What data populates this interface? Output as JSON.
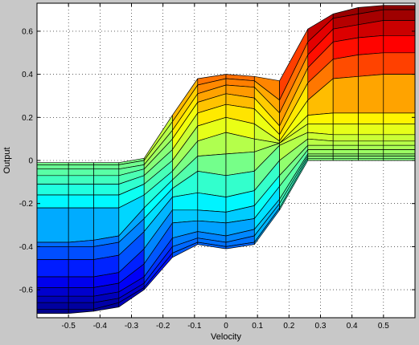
{
  "chart_data": {
    "type": "surface",
    "title": "",
    "xlabel": "Velocity",
    "ylabel": "Output",
    "xlim": [
      -0.6,
      0.6
    ],
    "ylim": [
      -0.73,
      0.73
    ],
    "x_ticks": [
      -0.5,
      -0.4,
      -0.3,
      -0.2,
      -0.1,
      0,
      0.1,
      0.2,
      0.3,
      0.4,
      0.5
    ],
    "x_tick_labels": [
      "-0.5",
      "-0.4",
      "-0.3",
      "-0.2",
      "-0.1",
      "0",
      "0.1",
      "0.2",
      "0.3",
      "0.4",
      "0.5"
    ],
    "y_ticks": [
      -0.6,
      -0.4,
      -0.2,
      0,
      0.2,
      0.4,
      0.6
    ],
    "y_tick_labels": [
      "-0.6",
      "-0.4",
      "-0.2",
      "0",
      "0.2",
      "0.4",
      "0.6"
    ],
    "grid": true,
    "colormap": "jet",
    "color_range": [
      -0.72,
      0.72
    ],
    "columns_x": [
      -0.6,
      -0.5,
      -0.42,
      -0.34,
      -0.26,
      -0.17,
      -0.09,
      0,
      0.09,
      0.17,
      0.26,
      0.34,
      0.42,
      0.5,
      0.6
    ],
    "mesh_rows": [
      {
        "level": 0,
        "y": [
          -0.01,
          -0.01,
          -0.01,
          -0.01,
          0.01,
          0.21,
          0.38,
          0.4,
          0.39,
          0.37,
          0.61,
          0.68,
          0.71,
          0.72,
          0.72
        ]
      },
      {
        "level": 1,
        "y": [
          -0.02,
          -0.02,
          -0.02,
          -0.02,
          0.0,
          0.18,
          0.35,
          0.38,
          0.37,
          0.28,
          0.55,
          0.66,
          0.68,
          0.7,
          0.7
        ]
      },
      {
        "level": 2,
        "y": [
          -0.04,
          -0.04,
          -0.04,
          -0.04,
          -0.02,
          0.14,
          0.31,
          0.35,
          0.34,
          0.22,
          0.49,
          0.61,
          0.63,
          0.65,
          0.65
        ]
      },
      {
        "level": 3,
        "y": [
          -0.07,
          -0.07,
          -0.07,
          -0.07,
          -0.04,
          0.1,
          0.27,
          0.31,
          0.29,
          0.16,
          0.43,
          0.55,
          0.57,
          0.58,
          0.58
        ]
      },
      {
        "level": 4,
        "y": [
          -0.11,
          -0.11,
          -0.11,
          -0.11,
          -0.07,
          0.05,
          0.22,
          0.26,
          0.24,
          0.12,
          0.36,
          0.47,
          0.49,
          0.5,
          0.5
        ]
      },
      {
        "level": 5,
        "y": [
          -0.16,
          -0.16,
          -0.16,
          -0.16,
          -0.11,
          0.0,
          0.16,
          0.2,
          0.17,
          0.09,
          0.28,
          0.38,
          0.39,
          0.4,
          0.4
        ]
      },
      {
        "level": 6,
        "y": [
          -0.22,
          -0.22,
          -0.22,
          -0.22,
          -0.16,
          -0.05,
          0.09,
          0.13,
          0.1,
          0.08,
          0.21,
          0.22,
          0.22,
          0.22,
          0.22
        ]
      },
      {
        "level": 7,
        "y": [
          -0.38,
          -0.38,
          -0.37,
          -0.35,
          -0.22,
          -0.09,
          0.02,
          0.03,
          0.04,
          0.08,
          0.17,
          0.17,
          0.17,
          0.17,
          0.17
        ]
      },
      {
        "level": 8,
        "y": [
          -0.4,
          -0.4,
          -0.4,
          -0.38,
          -0.27,
          -0.13,
          -0.05,
          -0.07,
          -0.05,
          0.07,
          0.13,
          0.12,
          0.12,
          0.12,
          0.12
        ]
      },
      {
        "level": 9,
        "y": [
          -0.46,
          -0.46,
          -0.46,
          -0.44,
          -0.33,
          -0.17,
          -0.15,
          -0.17,
          -0.14,
          0.0,
          0.1,
          0.09,
          0.09,
          0.09,
          0.09
        ]
      },
      {
        "level": 10,
        "y": [
          -0.54,
          -0.54,
          -0.54,
          -0.52,
          -0.41,
          -0.23,
          -0.23,
          -0.24,
          -0.21,
          -0.07,
          0.07,
          0.07,
          0.07,
          0.07,
          0.07
        ]
      },
      {
        "level": 11,
        "y": [
          -0.59,
          -0.59,
          -0.59,
          -0.57,
          -0.48,
          -0.29,
          -0.28,
          -0.29,
          -0.27,
          -0.12,
          0.05,
          0.05,
          0.05,
          0.05,
          0.05
        ]
      },
      {
        "level": 12,
        "y": [
          -0.63,
          -0.63,
          -0.63,
          -0.61,
          -0.54,
          -0.36,
          -0.33,
          -0.35,
          -0.32,
          -0.18,
          0.03,
          0.03,
          0.03,
          0.03,
          0.03
        ]
      },
      {
        "level": 13,
        "y": [
          -0.66,
          -0.66,
          -0.66,
          -0.64,
          -0.57,
          -0.4,
          -0.36,
          -0.38,
          -0.35,
          -0.2,
          0.02,
          0.02,
          0.02,
          0.02,
          0.02
        ]
      },
      {
        "level": 14,
        "y": [
          -0.69,
          -0.69,
          -0.69,
          -0.66,
          -0.59,
          -0.43,
          -0.38,
          -0.4,
          -0.38,
          -0.22,
          0.01,
          0.01,
          0.01,
          0.01,
          0.01
        ]
      },
      {
        "level": 15,
        "y": [
          -0.71,
          -0.71,
          -0.7,
          -0.68,
          -0.6,
          -0.45,
          -0.39,
          -0.41,
          -0.39,
          -0.23,
          0.0,
          0.0,
          0.0,
          0.0,
          0.0
        ]
      }
    ]
  }
}
